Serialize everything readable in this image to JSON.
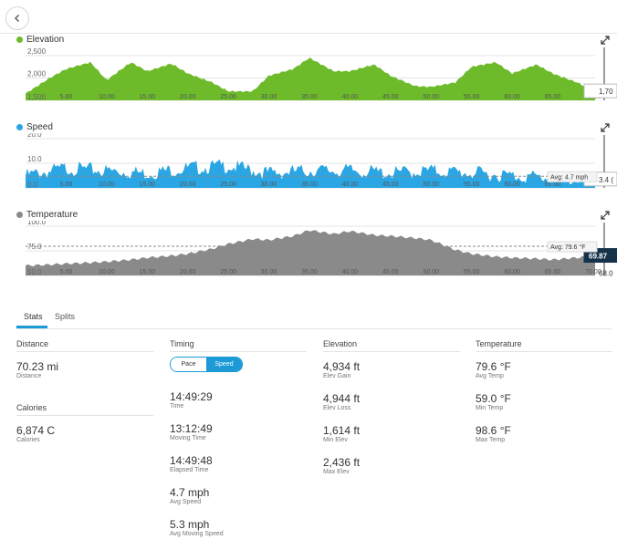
{
  "colors": {
    "elevation": "#6dbb2a",
    "speed": "#2aa6e4",
    "temperature": "#8a8a8a",
    "accent": "#1b9ad6",
    "temp_marker": "#16324b"
  },
  "icons": {
    "back": "chevron-left-icon",
    "expand": "expand-icon"
  },
  "charts": {
    "elevation": {
      "title": "Elevation",
      "y_ticks": [
        "2,500",
        "2,000",
        "1,500"
      ],
      "readout": "1,70",
      "avg_label": ""
    },
    "speed": {
      "title": "Speed",
      "y_ticks": [
        "20.0",
        "10.0",
        "0.0"
      ],
      "readout": "3.4 (",
      "avg_label": "Avg: 4.7 mph"
    },
    "temperature": {
      "title": "Temperature",
      "y_ticks": [
        "100.0",
        "75.0",
        "50.0"
      ],
      "readout": "69.87",
      "readout2": "68.0",
      "avg_label": "Avg: 79.6 °F"
    }
  },
  "x_ticks": [
    "5.00",
    "10.00",
    "15.00",
    "20.00",
    "25.00",
    "30.00",
    "35.00",
    "40.00",
    "45.00",
    "50.00",
    "55.00",
    "60.00",
    "65.00",
    "70.00"
  ],
  "chart_data": [
    {
      "type": "area",
      "title": "Elevation",
      "x": [
        0,
        3,
        5,
        8,
        10,
        13,
        15,
        18,
        20,
        23,
        25,
        28,
        30,
        33,
        35,
        38,
        40,
        43,
        45,
        48,
        50,
        53,
        55,
        58,
        60,
        63,
        65,
        68,
        70.23
      ],
      "series": [
        {
          "name": "Elevation",
          "values": [
            1650,
            2000,
            2200,
            2350,
            1950,
            2350,
            2150,
            2320,
            2100,
            1900,
            1700,
            1700,
            2050,
            2200,
            2450,
            2150,
            2150,
            2300,
            2050,
            1820,
            1800,
            1900,
            2250,
            2350,
            2100,
            2300,
            2100,
            1900,
            1700
          ]
        }
      ],
      "ylim": [
        1500,
        2600
      ],
      "y_ticks": [
        1500,
        2000,
        2500
      ]
    },
    {
      "type": "area",
      "title": "Speed",
      "x": [
        0,
        5,
        10,
        15,
        20,
        25,
        30,
        35,
        40,
        45,
        50,
        55,
        60,
        65,
        70.23
      ],
      "series": [
        {
          "name": "Speed",
          "values": [
            5,
            8,
            7,
            6,
            8,
            9,
            6,
            7,
            7,
            6,
            7,
            6,
            5,
            4,
            3.4
          ]
        }
      ],
      "ylim": [
        0,
        20
      ],
      "y_ticks": [
        0,
        10,
        20
      ],
      "avg": 4.7
    },
    {
      "type": "area",
      "title": "Temperature",
      "x": [
        0,
        3,
        5,
        8,
        10,
        13,
        15,
        18,
        20,
        23,
        25,
        28,
        30,
        33,
        35,
        38,
        40,
        43,
        45,
        48,
        50,
        53,
        55,
        58,
        60,
        63,
        65,
        68,
        70.23
      ],
      "series": [
        {
          "name": "Temperature",
          "values": [
            60,
            61,
            62,
            63,
            64,
            66,
            68,
            70,
            72,
            77,
            82,
            87,
            86,
            90,
            96,
            92,
            95,
            91,
            90,
            88,
            86,
            76,
            72,
            69,
            68,
            67,
            66,
            68,
            69.87
          ]
        }
      ],
      "ylim": [
        50,
        100
      ],
      "y_ticks": [
        50,
        75,
        100
      ],
      "avg": 79.6
    }
  ],
  "tabs": [
    "Stats",
    "Splits"
  ],
  "stats": {
    "distance": {
      "head": "Distance",
      "value": "70.23 mi",
      "label": "Distance"
    },
    "calories": {
      "head": "Calories",
      "value": "6,874 C",
      "label": "Calories"
    },
    "timing": {
      "head": "Timing",
      "toggle": [
        "Pace",
        "Speed"
      ],
      "items": [
        {
          "value": "14:49:29",
          "label": "Time"
        },
        {
          "value": "13:12:49",
          "label": "Moving Time"
        },
        {
          "value": "14:49:48",
          "label": "Elapsed Time"
        },
        {
          "value": "4.7 mph",
          "label": "Avg Speed"
        },
        {
          "value": "5.3 mph",
          "label": "Avg Moving Speed"
        }
      ]
    },
    "elevation": {
      "head": "Elevation",
      "items": [
        {
          "value": "4,934 ft",
          "label": "Elev Gain"
        },
        {
          "value": "4,944 ft",
          "label": "Elev Loss"
        },
        {
          "value": "1,614 ft",
          "label": "Min Elev"
        },
        {
          "value": "2,436 ft",
          "label": "Max Elev"
        }
      ]
    },
    "temperature": {
      "head": "Temperature",
      "items": [
        {
          "value": "79.6 °F",
          "label": "Avg Temp"
        },
        {
          "value": "59.0 °F",
          "label": "Min Temp"
        },
        {
          "value": "98.6 °F",
          "label": "Max Temp"
        }
      ]
    }
  }
}
